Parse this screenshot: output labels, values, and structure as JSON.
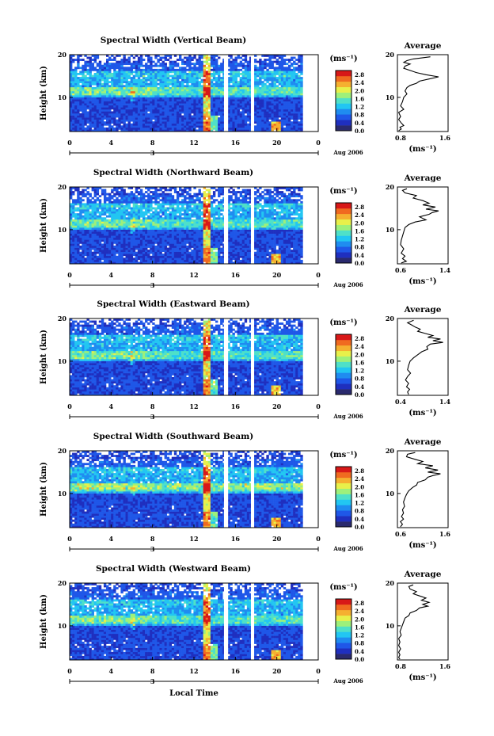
{
  "figure": {
    "x_axis_label": "Local Time",
    "date_label": "Aug 2006",
    "day_label": "3",
    "colorbar_unit": "(ms⁻¹)",
    "profile_title": "Average",
    "profile_unit": "(ms⁻¹)",
    "y_axis_label": "Height (km)",
    "colors": {
      "colormap": [
        "#2a2a6e",
        "#1f2fbf",
        "#1f57e8",
        "#1f8cf0",
        "#22c6f2",
        "#4fe0c8",
        "#9ef07a",
        "#e8f04a",
        "#f5b030",
        "#f06a20",
        "#d81818"
      ]
    }
  },
  "chart_data": [
    {
      "type": "heatmap",
      "title": "Spectral Width (Vertical Beam)",
      "xlabel": "Local Time",
      "ylabel": "Height (km)",
      "xlim": [
        0,
        24
      ],
      "ylim": [
        2,
        20
      ],
      "x_ticks": [
        "0",
        "4",
        "8",
        "12",
        "16",
        "20",
        "0"
      ],
      "y_ticks": [
        "10",
        "20"
      ],
      "colorbar": {
        "ticks": [
          "0.0",
          "0.4",
          "0.8",
          "1.2",
          "1.6",
          "2.0",
          "2.4",
          "2.8"
        ],
        "range": [
          0,
          3.0
        ]
      },
      "profile": {
        "title": "Average",
        "xlim": [
          0.8,
          1.6
        ],
        "x_ticks": [
          "0.8",
          "1.6"
        ],
        "points": [
          [
            1.32,
            19.5
          ],
          [
            1.05,
            19.0
          ],
          [
            0.95,
            18.6
          ],
          [
            0.9,
            18.2
          ],
          [
            1.0,
            17.8
          ],
          [
            0.92,
            17.3
          ],
          [
            0.9,
            16.8
          ],
          [
            1.0,
            16.3
          ],
          [
            1.1,
            15.8
          ],
          [
            1.25,
            15.3
          ],
          [
            1.45,
            14.8
          ],
          [
            1.3,
            14.3
          ],
          [
            1.15,
            13.8
          ],
          [
            1.1,
            13.3
          ],
          [
            1.0,
            12.8
          ],
          [
            0.95,
            12.3
          ],
          [
            0.92,
            11.5
          ],
          [
            0.95,
            10.8
          ],
          [
            0.9,
            10.0
          ],
          [
            0.88,
            9.0
          ],
          [
            0.85,
            8.0
          ],
          [
            0.9,
            7.2
          ],
          [
            0.82,
            6.5
          ],
          [
            0.85,
            5.5
          ],
          [
            0.82,
            4.8
          ],
          [
            0.86,
            4.0
          ],
          [
            0.9,
            3.4
          ],
          [
            0.84,
            3.0
          ],
          [
            0.86,
            2.6
          ],
          [
            0.82,
            2.2
          ]
        ]
      }
    },
    {
      "type": "heatmap",
      "title": "Spectral Width (Northward Beam)",
      "xlabel": "Local Time",
      "ylabel": "Height (km)",
      "xlim": [
        0,
        24
      ],
      "ylim": [
        2,
        20
      ],
      "x_ticks": [
        "0",
        "4",
        "8",
        "12",
        "16",
        "20",
        "0"
      ],
      "y_ticks": [
        "10",
        "20"
      ],
      "colorbar": {
        "ticks": [
          "0.0",
          "0.4",
          "0.8",
          "1.2",
          "1.6",
          "2.0",
          "2.4",
          "2.8"
        ],
        "range": [
          0,
          3.0
        ]
      },
      "profile": {
        "title": "Average",
        "xlim": [
          0.6,
          1.4
        ],
        "x_ticks": [
          "0.6",
          "1.4"
        ],
        "points": [
          [
            0.75,
            19.6
          ],
          [
            0.68,
            19.2
          ],
          [
            0.72,
            18.6
          ],
          [
            0.9,
            18.0
          ],
          [
            0.85,
            17.4
          ],
          [
            1.0,
            16.8
          ],
          [
            1.1,
            16.2
          ],
          [
            1.0,
            15.8
          ],
          [
            1.2,
            15.3
          ],
          [
            1.05,
            14.8
          ],
          [
            1.25,
            14.4
          ],
          [
            1.15,
            14.0
          ],
          [
            1.1,
            13.6
          ],
          [
            0.95,
            13.0
          ],
          [
            1.05,
            12.3
          ],
          [
            0.88,
            11.8
          ],
          [
            0.78,
            11.2
          ],
          [
            0.72,
            10.5
          ],
          [
            0.7,
            9.5
          ],
          [
            0.68,
            8.5
          ],
          [
            0.66,
            7.5
          ],
          [
            0.65,
            6.5
          ],
          [
            0.7,
            5.5
          ],
          [
            0.66,
            4.5
          ],
          [
            0.72,
            3.8
          ],
          [
            0.68,
            3.2
          ],
          [
            0.74,
            2.6
          ],
          [
            0.66,
            2.2
          ]
        ]
      }
    },
    {
      "type": "heatmap",
      "title": "Spectral Width (Eastward Beam)",
      "xlabel": "Local Time",
      "ylabel": "Height (km)",
      "xlim": [
        0,
        24
      ],
      "ylim": [
        2,
        20
      ],
      "x_ticks": [
        "0",
        "4",
        "8",
        "12",
        "16",
        "20",
        "0"
      ],
      "y_ticks": [
        "10",
        "20"
      ],
      "colorbar": {
        "ticks": [
          "0.0",
          "0.4",
          "0.8",
          "1.2",
          "1.6",
          "2.0",
          "2.4",
          "2.8"
        ],
        "range": [
          0,
          3.0
        ]
      },
      "profile": {
        "title": "Average",
        "xlim": [
          0.4,
          1.4
        ],
        "x_ticks": [
          "0.4",
          "1.4"
        ],
        "points": [
          [
            0.72,
            19.6
          ],
          [
            0.6,
            19.0
          ],
          [
            0.68,
            18.5
          ],
          [
            0.75,
            18.0
          ],
          [
            0.85,
            17.5
          ],
          [
            0.8,
            17.0
          ],
          [
            0.95,
            16.5
          ],
          [
            1.1,
            16.0
          ],
          [
            1.0,
            15.6
          ],
          [
            1.25,
            15.2
          ],
          [
            1.1,
            14.8
          ],
          [
            1.3,
            14.4
          ],
          [
            1.05,
            14.0
          ],
          [
            0.98,
            13.4
          ],
          [
            1.0,
            12.8
          ],
          [
            0.88,
            12.2
          ],
          [
            0.8,
            11.5
          ],
          [
            0.72,
            10.8
          ],
          [
            0.65,
            10.0
          ],
          [
            0.62,
            9.0
          ],
          [
            0.6,
            8.0
          ],
          [
            0.66,
            7.2
          ],
          [
            0.6,
            6.4
          ],
          [
            0.56,
            5.6
          ],
          [
            0.62,
            4.8
          ],
          [
            0.58,
            4.0
          ],
          [
            0.64,
            3.4
          ],
          [
            0.6,
            2.8
          ],
          [
            0.62,
            2.2
          ]
        ]
      }
    },
    {
      "type": "heatmap",
      "title": "Spectral Width (Southward Beam)",
      "xlabel": "Local Time",
      "ylabel": "Height (km)",
      "xlim": [
        0,
        24
      ],
      "ylim": [
        2,
        20
      ],
      "x_ticks": [
        "0",
        "4",
        "8",
        "12",
        "16",
        "20",
        "0"
      ],
      "y_ticks": [
        "10",
        "20"
      ],
      "colorbar": {
        "ticks": [
          "0.0",
          "0.4",
          "0.8",
          "1.2",
          "1.6",
          "2.0",
          "2.4",
          "2.8"
        ],
        "range": [
          0,
          3.0
        ]
      },
      "profile": {
        "title": "Average",
        "xlim": [
          0.6,
          1.6
        ],
        "x_ticks": [
          "0.6",
          "1.6"
        ],
        "points": [
          [
            0.95,
            19.6
          ],
          [
            0.8,
            19.2
          ],
          [
            0.78,
            18.6
          ],
          [
            0.95,
            18.0
          ],
          [
            1.1,
            17.5
          ],
          [
            1.0,
            17.0
          ],
          [
            1.3,
            16.5
          ],
          [
            1.15,
            16.0
          ],
          [
            1.4,
            15.5
          ],
          [
            1.2,
            15.0
          ],
          [
            1.45,
            14.6
          ],
          [
            1.3,
            14.2
          ],
          [
            1.2,
            13.8
          ],
          [
            1.15,
            13.2
          ],
          [
            1.0,
            12.6
          ],
          [
            0.98,
            12.0
          ],
          [
            0.9,
            11.4
          ],
          [
            0.82,
            10.6
          ],
          [
            0.78,
            9.8
          ],
          [
            0.75,
            9.0
          ],
          [
            0.72,
            8.0
          ],
          [
            0.74,
            7.0
          ],
          [
            0.7,
            6.2
          ],
          [
            0.72,
            5.4
          ],
          [
            0.68,
            4.6
          ],
          [
            0.72,
            4.0
          ],
          [
            0.66,
            3.4
          ],
          [
            0.7,
            2.8
          ],
          [
            0.66,
            2.2
          ]
        ]
      }
    },
    {
      "type": "heatmap",
      "title": "Spectral Width (Westward Beam)",
      "xlabel": "Local Time",
      "ylabel": "Height (km)",
      "xlim": [
        0,
        24
      ],
      "ylim": [
        2,
        20
      ],
      "x_ticks": [
        "0",
        "4",
        "8",
        "12",
        "16",
        "20",
        "0"
      ],
      "y_ticks": [
        "10",
        "20"
      ],
      "colorbar": {
        "ticks": [
          "0.0",
          "0.4",
          "0.8",
          "1.2",
          "1.6",
          "2.0",
          "2.4",
          "2.8"
        ],
        "range": [
          0,
          3.0
        ]
      },
      "profile": {
        "title": "Average",
        "xlim": [
          0.8,
          1.6
        ],
        "x_ticks": [
          "0.8",
          "1.6"
        ],
        "points": [
          [
            1.05,
            19.6
          ],
          [
            0.98,
            19.2
          ],
          [
            1.0,
            18.6
          ],
          [
            1.1,
            18.0
          ],
          [
            1.05,
            17.5
          ],
          [
            1.15,
            17.0
          ],
          [
            1.25,
            16.5
          ],
          [
            1.18,
            16.0
          ],
          [
            1.3,
            15.5
          ],
          [
            1.2,
            15.0
          ],
          [
            1.28,
            14.6
          ],
          [
            1.15,
            14.2
          ],
          [
            1.1,
            13.6
          ],
          [
            1.0,
            13.0
          ],
          [
            0.98,
            12.4
          ],
          [
            0.92,
            11.8
          ],
          [
            0.9,
            11.0
          ],
          [
            0.88,
            10.2
          ],
          [
            0.86,
            9.4
          ],
          [
            0.84,
            8.6
          ],
          [
            0.86,
            7.8
          ],
          [
            0.82,
            7.0
          ],
          [
            0.84,
            6.2
          ],
          [
            0.82,
            5.4
          ],
          [
            0.85,
            4.6
          ],
          [
            0.82,
            3.8
          ],
          [
            0.84,
            3.2
          ],
          [
            0.82,
            2.6
          ],
          [
            0.84,
            2.2
          ]
        ]
      }
    }
  ]
}
